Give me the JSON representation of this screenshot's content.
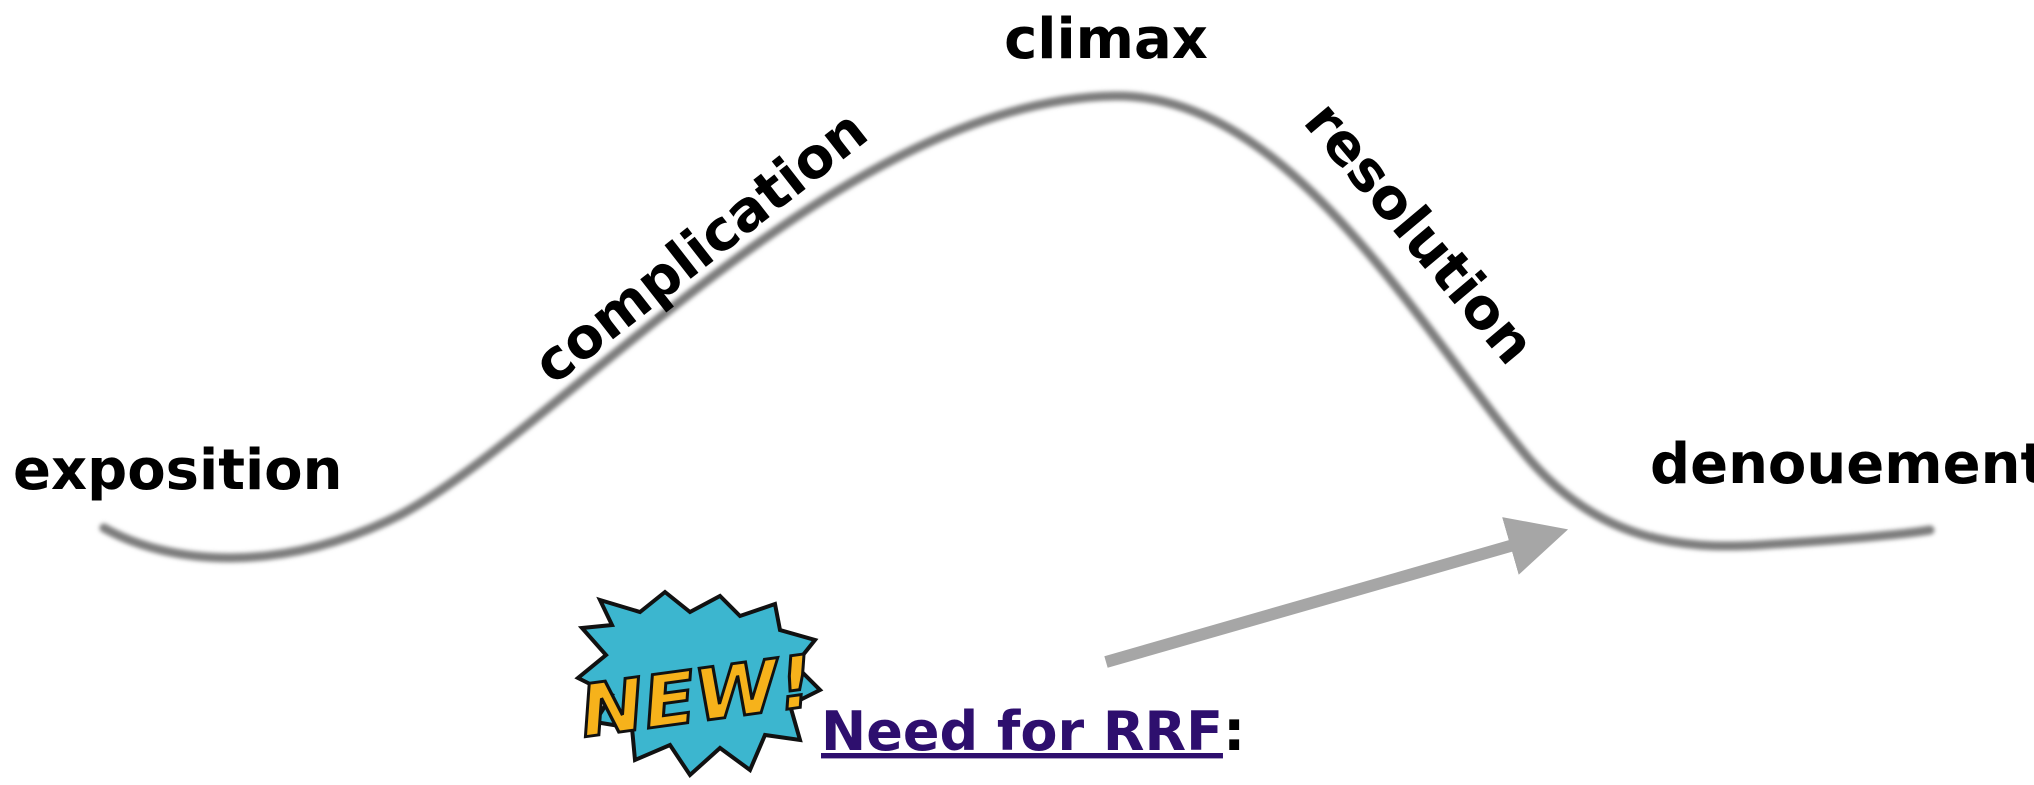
{
  "labels": {
    "exposition": "exposition",
    "complication": "complication",
    "climax": "climax",
    "resolution": "resolution",
    "denouement": "denouement"
  },
  "badge": {
    "text": "NEW!"
  },
  "footer": {
    "link": "Need for RRF",
    "suffix": ":"
  }
}
